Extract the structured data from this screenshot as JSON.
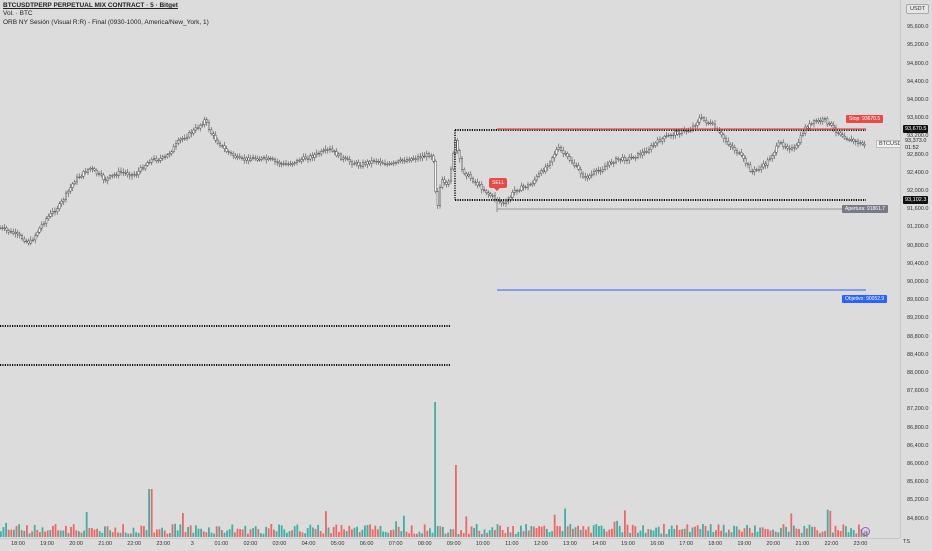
{
  "legend": {
    "title": "BTCUSDTPERP PERPETUAL MIX CONTRACT · 5 · Bitget",
    "volume": "Vol. · BTC",
    "indicator": "ORB NY Sesión (Visual R:R) - Final (0930-1000, America/New_York, 1)"
  },
  "price_axis": {
    "currency": "USDT",
    "ticks": [
      "96,000.0",
      "95,600.0",
      "95,200.0",
      "94,800.0",
      "94,400.0",
      "94,000.0",
      "93,600.0",
      "93,200.0",
      "92,800.0",
      "92,400.0",
      "92,000.0",
      "91,600.0",
      "91,200.0",
      "90,800.0",
      "90,400.0",
      "90,000.0",
      "89,600.0",
      "89,200.0",
      "88,800.0",
      "88,400.0",
      "88,000.0",
      "87,600.0",
      "87,200.0",
      "86,800.0",
      "86,400.0",
      "86,000.0",
      "85,600.0",
      "85,200.0",
      "84,800.0"
    ],
    "or_high_label": "93,670.5",
    "current_price": "93,373.0",
    "countdown": "01:52",
    "or_low_label": "93,102.3",
    "ticker_tag": "BTCUSDT.P",
    "timezone_button": "TS"
  },
  "time_axis": {
    "labels": [
      "18:00",
      "19:00",
      "20:00",
      "21:00",
      "22:00",
      "23:00",
      "3",
      "01:00",
      "02:00",
      "03:00",
      "04:00",
      "05:00",
      "06:00",
      "07:00",
      "08:00",
      "09:00",
      "10:00",
      "11:00",
      "12:00",
      "13:00",
      "14:00",
      "15:00",
      "16:00",
      "17:00",
      "18:00",
      "19:00",
      "20:00",
      "21:00",
      "22:00",
      "23:00"
    ]
  },
  "annotations": {
    "stop": "Stop: 93670.5",
    "sell": "SELL",
    "entry": "Apertura: 91861.7",
    "target": "Objetivo: 90052.9"
  },
  "colors": {
    "bull": "#26a69a",
    "bear": "#ef5350",
    "stop": "#e84a4a",
    "target": "#2962ff",
    "entry": "#787b86",
    "level": "#111111"
  }
}
